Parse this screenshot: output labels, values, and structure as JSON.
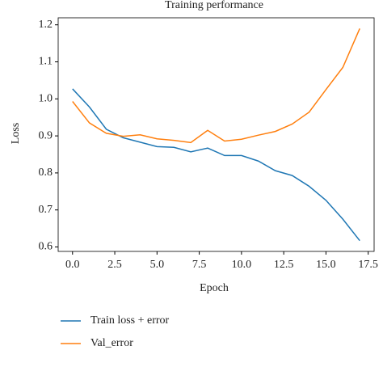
{
  "chart_data": {
    "type": "line",
    "title": "Training performance",
    "xlabel": "Epoch",
    "ylabel": "Loss",
    "x": [
      0,
      1,
      2,
      3,
      4,
      5,
      6,
      7,
      8,
      9,
      10,
      11,
      12,
      13,
      14,
      15,
      16,
      17
    ],
    "series": [
      {
        "name": "Train loss + error",
        "color": "#1f77b4",
        "values": [
          1.027,
          0.978,
          0.918,
          0.895,
          0.883,
          0.871,
          0.869,
          0.857,
          0.867,
          0.847,
          0.847,
          0.832,
          0.806,
          0.793,
          0.764,
          0.726,
          0.675,
          0.617
        ]
      },
      {
        "name": "Val_error",
        "color": "#ff7f0e",
        "values": [
          0.993,
          0.935,
          0.907,
          0.899,
          0.903,
          0.892,
          0.888,
          0.882,
          0.915,
          0.886,
          0.891,
          0.902,
          0.912,
          0.932,
          0.964,
          1.025,
          1.085,
          1.19
        ]
      }
    ],
    "xlim": [
      -0.85,
      17.85
    ],
    "xticks": [
      {
        "value": 0,
        "label": "0.0"
      },
      2.5,
      {
        "value": 5,
        "label": "5.0"
      },
      7.5,
      {
        "value": 10,
        "label": "10.0"
      },
      12.5,
      {
        "value": 15,
        "label": "15.0"
      },
      17.5
    ],
    "ylim": [
      0.588,
      1.219
    ],
    "yticks": [
      0.6,
      0.7,
      0.8,
      0.9,
      {
        "value": 1,
        "label": "1.0"
      },
      1.1,
      1.2
    ],
    "legend": "below"
  }
}
